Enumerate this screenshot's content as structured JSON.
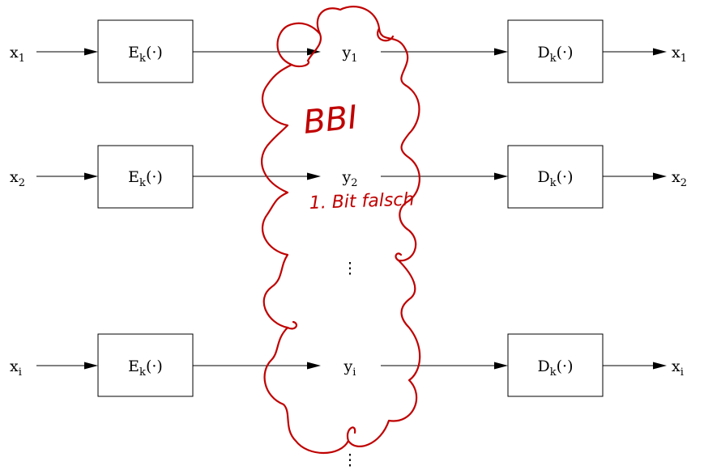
{
  "rows": [
    {
      "input": "x",
      "input_sub": "1",
      "encoder": "E",
      "encoder_sub": "k",
      "encoder_arg": "(·)",
      "channel": "y",
      "channel_sub": "1",
      "decoder": "D",
      "decoder_sub": "k",
      "decoder_arg": "(·)",
      "output": "x",
      "output_sub": "1"
    },
    {
      "input": "x",
      "input_sub": "2",
      "encoder": "E",
      "encoder_sub": "k",
      "encoder_arg": "(·)",
      "channel": "y",
      "channel_sub": "2",
      "decoder": "D",
      "decoder_sub": "k",
      "decoder_arg": "(·)",
      "output": "x",
      "output_sub": "2"
    },
    {
      "input": "x",
      "input_sub": "i",
      "encoder": "E",
      "encoder_sub": "k",
      "encoder_arg": "(·)",
      "channel": "y",
      "channel_sub": "i",
      "decoder": "D",
      "decoder_sub": "k",
      "decoder_arg": "(·)",
      "output": "x",
      "output_sub": "i"
    }
  ],
  "ellipsis": "⋮",
  "annotations": {
    "cloud_label": "BBI",
    "note": "1. Bit falsch",
    "color": "#c00000"
  }
}
